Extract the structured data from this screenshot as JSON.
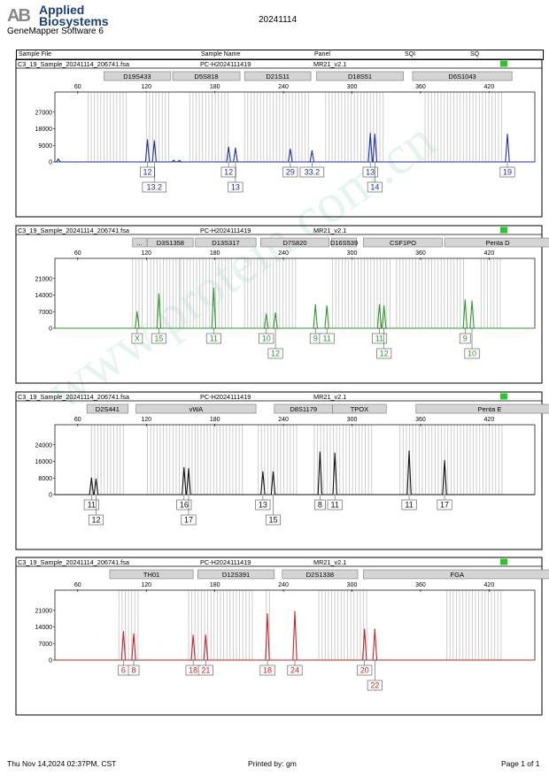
{
  "header": {
    "logo_mark": "AB",
    "brand_line1": "Applied",
    "brand_line2": "Biosystems",
    "software": "GeneMapper Software 6",
    "title": "20241114"
  },
  "columns": {
    "sample_file": "Sample File",
    "sample_name": "Sample Name",
    "panel": "Panel",
    "sqi": "SQI",
    "sq": "SQ"
  },
  "footer": {
    "timestamp": "Thu Nov 14,2024 02:37PM, CST",
    "printed_by": "Printed by: gm",
    "page": "Page 1 of 1"
  },
  "colors": {
    "blue": "#1a2fb0",
    "green": "#2a9a2a",
    "black": "#111111",
    "red": "#cc2222",
    "status": "#22cc22"
  },
  "chart_data": [
    {
      "type": "line",
      "dye": "blue",
      "file": "C3_19_Sample_20241114_206741.fsa",
      "sample_name": "PC-H2024111419",
      "panel": "MR21_v2.1",
      "x_range": [
        40,
        460
      ],
      "x_ticks": [
        60,
        120,
        180,
        240,
        300,
        360,
        420
      ],
      "ylim": [
        0,
        36000
      ],
      "y_ticks": [
        0,
        9000,
        18000,
        27000
      ],
      "loci": [
        {
          "name": "D19S433",
          "start": 83,
          "end": 141
        },
        {
          "name": "D5S818",
          "start": 143,
          "end": 202
        },
        {
          "name": "D21S11",
          "start": 206,
          "end": 264
        },
        {
          "name": "D18S51",
          "start": 269,
          "end": 345
        },
        {
          "name": "D6S1043",
          "start": 353,
          "end": 440
        }
      ],
      "bins": [
        [
          69,
          105
        ],
        [
          120,
          140
        ],
        [
          158,
          192
        ],
        [
          206,
          264
        ],
        [
          277,
          330
        ],
        [
          364,
          432
        ]
      ],
      "peaks": [
        {
          "x": 43,
          "h": 1500
        },
        {
          "x": 121,
          "h": 12000
        },
        {
          "x": 127,
          "h": 11500
        },
        {
          "x": 144,
          "h": 900
        },
        {
          "x": 149,
          "h": 800
        },
        {
          "x": 192,
          "h": 8000
        },
        {
          "x": 198,
          "h": 7500
        },
        {
          "x": 246,
          "h": 7000
        },
        {
          "x": 265,
          "h": 6000
        },
        {
          "x": 316,
          "h": 15500
        },
        {
          "x": 320,
          "h": 15000
        },
        {
          "x": 436,
          "h": 15000
        }
      ],
      "alleles": [
        {
          "x": 121,
          "row": 0,
          "label": "12"
        },
        {
          "x": 127,
          "row": 1,
          "label": "13.2"
        },
        {
          "x": 192,
          "row": 0,
          "label": "12"
        },
        {
          "x": 198,
          "row": 1,
          "label": "13"
        },
        {
          "x": 246,
          "row": 0,
          "label": "29"
        },
        {
          "x": 265,
          "row": 0,
          "label": "33.2"
        },
        {
          "x": 316,
          "row": 0,
          "label": "13"
        },
        {
          "x": 320,
          "row": 1,
          "label": "14"
        },
        {
          "x": 436,
          "row": 0,
          "label": "19"
        }
      ]
    },
    {
      "type": "line",
      "dye": "green",
      "file": "C3_19_Sample_20241114_206741.fsa",
      "sample_name": "PC-H2024111419",
      "panel": "MR21_v2.1",
      "x_range": [
        40,
        460
      ],
      "x_ticks": [
        60,
        120,
        180,
        240,
        300,
        360,
        420
      ],
      "ylim": [
        0,
        28000
      ],
      "y_ticks": [
        0,
        7000,
        14000,
        21000
      ],
      "loci": [
        {
          "name": "...",
          "start": 108,
          "end": 120
        },
        {
          "name": "D3S1358",
          "start": 121,
          "end": 161
        },
        {
          "name": "D13S317",
          "start": 163,
          "end": 216
        },
        {
          "name": "D7S820",
          "start": 220,
          "end": 280
        },
        {
          "name": "D16S539",
          "start": 282,
          "end": 304
        },
        {
          "name": "CSF1PO",
          "start": 310,
          "end": 379
        },
        {
          "name": "Penta D",
          "start": 381,
          "end": 474
        }
      ],
      "bins": [
        [
          108,
          118
        ],
        [
          121,
          150
        ],
        [
          150,
          196
        ],
        [
          206,
          253
        ],
        [
          283,
          335
        ],
        [
          339,
          398
        ],
        [
          413,
          432
        ]
      ],
      "peaks": [
        {
          "x": 112,
          "h": 7000
        },
        {
          "x": 131,
          "h": 14500
        },
        {
          "x": 179,
          "h": 17000
        },
        {
          "x": 225,
          "h": 6000
        },
        {
          "x": 233,
          "h": 6500
        },
        {
          "x": 268,
          "h": 10000
        },
        {
          "x": 278,
          "h": 9500
        },
        {
          "x": 324,
          "h": 10000
        },
        {
          "x": 328,
          "h": 9500
        },
        {
          "x": 399,
          "h": 12000
        },
        {
          "x": 405,
          "h": 11500
        }
      ],
      "alleles": [
        {
          "x": 112,
          "row": 0,
          "label": "X"
        },
        {
          "x": 131,
          "row": 0,
          "label": "15"
        },
        {
          "x": 179,
          "row": 0,
          "label": "11"
        },
        {
          "x": 225,
          "row": 0,
          "label": "10"
        },
        {
          "x": 233,
          "row": 1,
          "label": "12"
        },
        {
          "x": 268,
          "row": 0,
          "label": "9"
        },
        {
          "x": 278,
          "row": 0,
          "label": "11"
        },
        {
          "x": 324,
          "row": 0,
          "label": "11"
        },
        {
          "x": 328,
          "row": 1,
          "label": "12"
        },
        {
          "x": 399,
          "row": 0,
          "label": "9"
        },
        {
          "x": 405,
          "row": 1,
          "label": "10"
        }
      ]
    },
    {
      "type": "line",
      "dye": "black",
      "file": "C3_19_Sample_20241114_206741.fsa",
      "sample_name": "PC-H2024111419",
      "panel": "MR21_v2.1",
      "x_range": [
        40,
        460
      ],
      "x_ticks": [
        60,
        120,
        180,
        240,
        300,
        360,
        420
      ],
      "ylim": [
        0,
        32000
      ],
      "y_ticks": [
        0,
        8000,
        16000,
        24000
      ],
      "loci": [
        {
          "name": "D2S441",
          "start": 68,
          "end": 104
        },
        {
          "name": "vWA",
          "start": 111,
          "end": 216
        },
        {
          "name": "D8S1179",
          "start": 232,
          "end": 283
        },
        {
          "name": "TPOX",
          "start": 283,
          "end": 330
        },
        {
          "name": "Penta E",
          "start": 356,
          "end": 485
        }
      ],
      "bins": [
        [
          72,
          101
        ],
        [
          121,
          165
        ],
        [
          165,
          205
        ],
        [
          218,
          254
        ],
        [
          267,
          320
        ],
        [
          342,
          432
        ]
      ],
      "peaks": [
        {
          "x": 72,
          "h": 8000
        },
        {
          "x": 76,
          "h": 7500
        },
        {
          "x": 153,
          "h": 13000
        },
        {
          "x": 157,
          "h": 12500
        },
        {
          "x": 222,
          "h": 11000
        },
        {
          "x": 231,
          "h": 11000
        },
        {
          "x": 272,
          "h": 20500
        },
        {
          "x": 285,
          "h": 20000
        },
        {
          "x": 350,
          "h": 21000
        },
        {
          "x": 381,
          "h": 16500
        }
      ],
      "alleles": [
        {
          "x": 72,
          "row": 0,
          "label": "11"
        },
        {
          "x": 76,
          "row": 1,
          "label": "12"
        },
        {
          "x": 153,
          "row": 0,
          "label": "16"
        },
        {
          "x": 157,
          "row": 1,
          "label": "17"
        },
        {
          "x": 222,
          "row": 0,
          "label": "13"
        },
        {
          "x": 231,
          "row": 1,
          "label": "15"
        },
        {
          "x": 272,
          "row": 0,
          "label": "8"
        },
        {
          "x": 285,
          "row": 0,
          "label": "11"
        },
        {
          "x": 350,
          "row": 0,
          "label": "11"
        },
        {
          "x": 381,
          "row": 0,
          "label": "17"
        }
      ]
    },
    {
      "type": "line",
      "dye": "red",
      "file": "C3_19_Sample_20241114_206741.fsa",
      "sample_name": "PC-H2024111419",
      "panel": "MR21_v2.1",
      "x_range": [
        40,
        460
      ],
      "x_ticks": [
        60,
        120,
        180,
        240,
        300,
        360,
        420
      ],
      "ylim": [
        0,
        28000
      ],
      "y_ticks": [
        0,
        7000,
        14000,
        21000
      ],
      "loci": [
        {
          "name": "TH01",
          "start": 88,
          "end": 161
        },
        {
          "name": "D12S391",
          "start": 165,
          "end": 232
        },
        {
          "name": "D2S1338",
          "start": 239,
          "end": 305
        },
        {
          "name": "FGA",
          "start": 310,
          "end": 474
        }
      ],
      "bins": [
        [
          96,
          113
        ],
        [
          157,
          213
        ],
        [
          225,
          228
        ],
        [
          271,
          314
        ],
        [
          383,
          432
        ]
      ],
      "peaks": [
        {
          "x": 100,
          "h": 12000
        },
        {
          "x": 109,
          "h": 11000
        },
        {
          "x": 161,
          "h": 10500
        },
        {
          "x": 172,
          "h": 10500
        },
        {
          "x": 226,
          "h": 19500
        },
        {
          "x": 250,
          "h": 20500
        },
        {
          "x": 311,
          "h": 13000
        },
        {
          "x": 320,
          "h": 13000
        }
      ],
      "alleles": [
        {
          "x": 100,
          "row": 0,
          "label": "6"
        },
        {
          "x": 109,
          "row": 0,
          "label": "8"
        },
        {
          "x": 161,
          "row": 0,
          "label": "18"
        },
        {
          "x": 172,
          "row": 0,
          "label": "21"
        },
        {
          "x": 226,
          "row": 0,
          "label": "18"
        },
        {
          "x": 250,
          "row": 0,
          "label": "24"
        },
        {
          "x": 311,
          "row": 0,
          "label": "20"
        },
        {
          "x": 320,
          "row": 1,
          "label": "22"
        }
      ]
    }
  ]
}
